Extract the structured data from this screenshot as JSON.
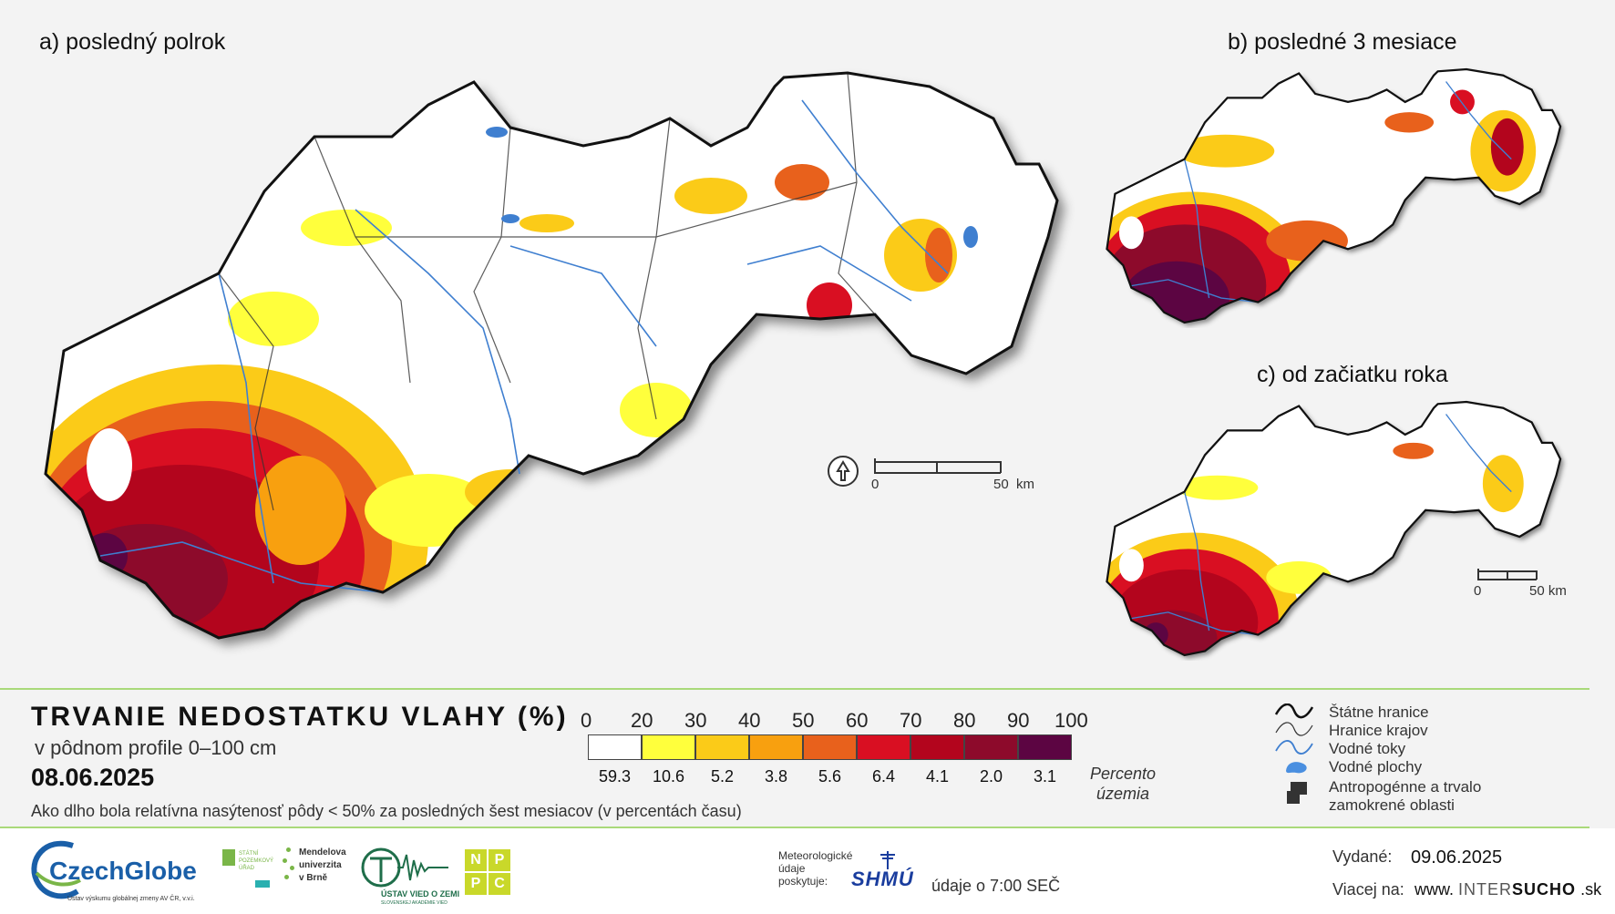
{
  "maps": {
    "a_title": "a) posledný polrok",
    "b_title": "b) posledné 3 mesiace",
    "c_title": "c) od začiatku roka"
  },
  "scalebar_main": {
    "zero": "0",
    "end": "50",
    "unit": "km"
  },
  "scalebar_small": {
    "zero": "0",
    "end": "50 km"
  },
  "legend": {
    "title": "TRVANIE NEDOSTATKU VLAHY (%)",
    "subtitle": "v pôdnom profile 0–100 cm",
    "date": "08.06.2025",
    "description": "Ako dlho bola relatívna nasýtenosť pôdy < 50% za posledných šest mesiacov (v percentách času)",
    "scale_ticks": [
      "0",
      "20",
      "30",
      "40",
      "50",
      "60",
      "70",
      "80",
      "90",
      "100"
    ],
    "classes": [
      {
        "color": "#ffffff",
        "pct": "59.3"
      },
      {
        "color": "#ffff3c",
        "pct": "10.6"
      },
      {
        "color": "#fbcb18",
        "pct": "5.2"
      },
      {
        "color": "#f8a00f",
        "pct": "3.8"
      },
      {
        "color": "#e8611c",
        "pct": "5.6"
      },
      {
        "color": "#d90f22",
        "pct": "6.4"
      },
      {
        "color": "#b3051d",
        "pct": "4.1"
      },
      {
        "color": "#8d0a2b",
        "pct": "2.0"
      },
      {
        "color": "#5c0542",
        "pct": "3.1"
      }
    ],
    "pct_label_1": "Percento",
    "pct_label_2": "územia"
  },
  "key": {
    "state_border": "Štátne hranice",
    "region_border": "Hranice krajov",
    "rivers": "Vodné toky",
    "water_bodies": "Vodné plochy",
    "anthropogenic_1": "Antropogénne a trvalo",
    "anthropogenic_2": "zamokrené oblasti"
  },
  "footer": {
    "czechglobe": "CzechGlobe",
    "czechglobe_sub": "Ústav výskumu globálnej zmeny AV ČR, v.v.i.",
    "spu_1": "STÁTNÍ",
    "spu_2": "POZEMKOVÝ",
    "spu_3": "ÚŘAD",
    "mendel_1": "Mendelova",
    "mendel_2": "univerzita",
    "mendel_3": "v Brně",
    "uvz": "ÚSTAV VIED O ZEMI",
    "uvz_sub": "SLOVENSKEJ AKADÉMIE VIED",
    "nppc_letters": [
      "N",
      "P",
      "P",
      "C"
    ],
    "meteo_1": "Meteorologické",
    "meteo_2": "údaje",
    "meteo_3": "poskytuje:",
    "shmu": "SHMÚ",
    "data_time": "údaje o 7:00 SEČ",
    "issued_label": "Vydané:",
    "issued_date": "09.06.2025",
    "more_label": "Viacej na:",
    "url_1": "www.",
    "url_2": "INTER",
    "url_3": "SUCHO",
    "url_4": ".sk"
  },
  "colors": {
    "accent_green": "#7ab648",
    "czechglobe_blue": "#1a5fa8"
  }
}
